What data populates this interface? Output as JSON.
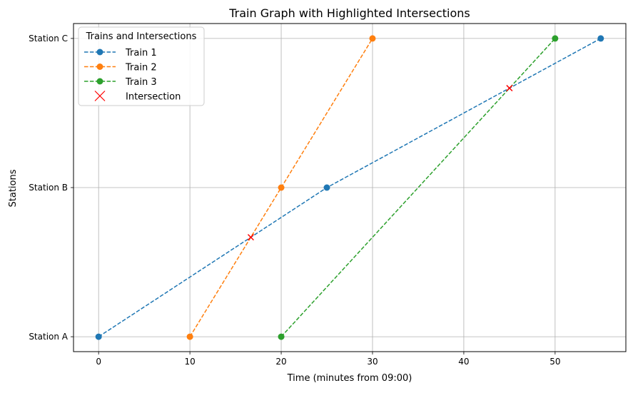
{
  "chart_data": {
    "type": "line",
    "title": "Train Graph with Highlighted Intersections",
    "xlabel": "Time (minutes from 09:00)",
    "ylabel": "Stations",
    "xlim": [
      -2.75,
      57.75
    ],
    "ylim": [
      -0.1,
      2.1
    ],
    "x_ticks": [
      0,
      10,
      20,
      30,
      40,
      50
    ],
    "y_ticks": [
      {
        "value": 0,
        "label": "Station A"
      },
      {
        "value": 1,
        "label": "Station B"
      },
      {
        "value": 2,
        "label": "Station C"
      }
    ],
    "grid": true,
    "legend": {
      "title": "Trains and Intersections",
      "placement": "top-left"
    },
    "series": [
      {
        "name": "Train 1",
        "color": "#1f77b4",
        "x": [
          0,
          25,
          55
        ],
        "y": [
          0,
          1,
          2
        ]
      },
      {
        "name": "Train 2",
        "color": "#ff7f0e",
        "x": [
          10,
          20,
          30
        ],
        "y": [
          0,
          1,
          2
        ]
      },
      {
        "name": "Train 3",
        "color": "#2ca02c",
        "x": [
          20,
          50
        ],
        "y": [
          0,
          2
        ]
      }
    ],
    "intersections": {
      "name": "Intersection",
      "color": "#ff0000",
      "points": [
        {
          "x": 16.67,
          "y": 0.667
        },
        {
          "x": 45,
          "y": 1.667
        }
      ]
    }
  }
}
